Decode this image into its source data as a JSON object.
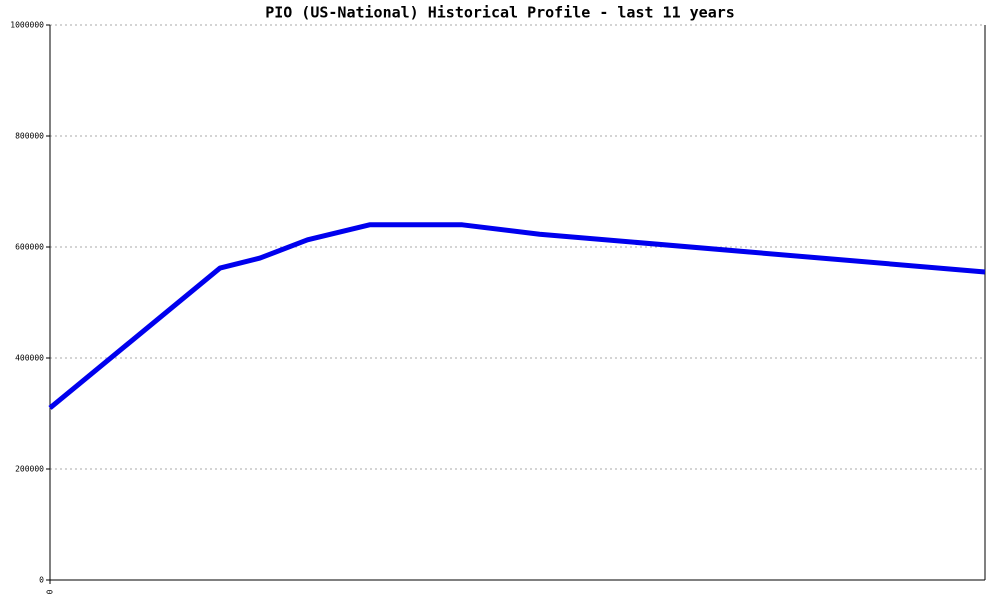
{
  "chart_data": {
    "type": "line",
    "title": "PIO (US-National) Historical Profile - last 11 years",
    "x": [
      0,
      2,
      2.47,
      3.03,
      3.76,
      4.85,
      5.76,
      11
    ],
    "series": [
      {
        "name": "PIO",
        "color": "#0000ee",
        "values": [
          310000,
          562000,
          580000,
          613000,
          640000,
          640000,
          623000,
          555000
        ]
      }
    ],
    "xlim": [
      0,
      11
    ],
    "xticks": [
      0
    ],
    "ylim": [
      0,
      1000000
    ],
    "yticks": [
      0,
      200000,
      400000,
      600000,
      800000,
      1000000
    ],
    "grid": true
  }
}
